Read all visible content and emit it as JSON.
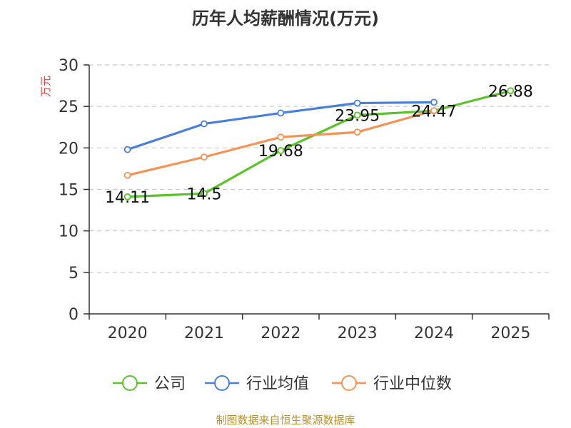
{
  "title": "历年人均薪酬情况(万元)",
  "source": "制图数据来自恒生聚源数据库",
  "chart_data": {
    "type": "line",
    "title": "历年人均薪酬情况(万元)",
    "xlabel": "",
    "ylabel": "万元",
    "ylabel_color": "#e03c3c",
    "ylim": [
      0,
      30
    ],
    "yticks": [
      0,
      5,
      10,
      15,
      20,
      25,
      30
    ],
    "grid": true,
    "legend_position": "bottom",
    "categories": [
      "2020",
      "2021",
      "2022",
      "2023",
      "2024",
      "2025"
    ],
    "series": [
      {
        "name": "公司",
        "color": "#5cc22c",
        "values": [
          14.11,
          14.5,
          19.68,
          23.95,
          24.47,
          26.88
        ],
        "labels": [
          "14.11",
          "14.5",
          "19.68",
          "23.95",
          "24.47",
          "26.88"
        ]
      },
      {
        "name": "行业均值",
        "color": "#4a7fd9",
        "values": [
          19.8,
          22.9,
          24.2,
          25.4,
          25.5,
          null
        ]
      },
      {
        "name": "行业中位数",
        "color": "#f59356",
        "values": [
          16.7,
          18.9,
          21.3,
          21.9,
          24.5,
          null
        ]
      }
    ]
  }
}
